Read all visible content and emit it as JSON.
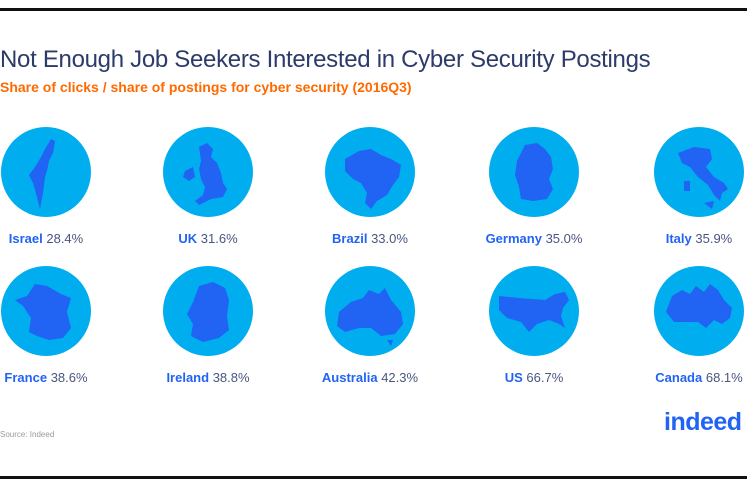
{
  "title": "Not Enough Job Seekers Interested in Cyber Security Postings",
  "subtitle": "Share of clicks / share of postings for cyber security (2016Q3)",
  "source": "Source: Indeed",
  "logo": "indeed",
  "colors": {
    "circle": "#00adef",
    "map": "#2164f3",
    "label": "#2164f3",
    "title": "#2d3b6b",
    "subtitle": "#ff6a00"
  },
  "chart_data": {
    "type": "table",
    "title": "Not Enough Job Seekers Interested in Cyber Security Postings",
    "subtitle": "Share of clicks / share of postings for cyber security (2016Q3)",
    "categories": [
      "Israel",
      "UK",
      "Brazil",
      "Germany",
      "Italy",
      "France",
      "Ireland",
      "Australia",
      "US",
      "Canada"
    ],
    "values": [
      28.4,
      31.6,
      33.0,
      35.0,
      35.9,
      38.6,
      38.8,
      42.3,
      66.7,
      68.1
    ],
    "value_labels": [
      "28.4%",
      "31.6%",
      "33.0%",
      "35.0%",
      "35.9%",
      "38.6%",
      "38.8%",
      "42.3%",
      "66.7%",
      "68.1%"
    ]
  }
}
